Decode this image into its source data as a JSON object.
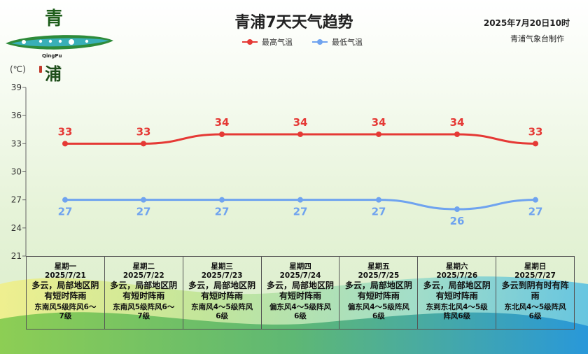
{
  "header": {
    "title": "青浦7天天气趋势",
    "date_stamp": "2025年7月20日10时",
    "maker": "青浦气象台制作"
  },
  "logo": {
    "char_top": "青",
    "char_bottom": "浦",
    "english": "QingPu"
  },
  "colors": {
    "high": "#e53935",
    "low": "#6fa3ef",
    "axis": "#666666"
  },
  "chart_data": {
    "type": "line",
    "title": "青浦7天天气趋势",
    "ylabel": "(℃)",
    "ylim": [
      21,
      39
    ],
    "yticks": [
      21,
      24,
      27,
      30,
      33,
      36,
      39
    ],
    "grid": false,
    "legend_position": "top-center",
    "categories": [
      "2025/7/21",
      "2025/7/22",
      "2025/7/23",
      "2025/7/24",
      "2025/7/25",
      "2025/7/26",
      "2025/7/27"
    ],
    "series": [
      {
        "name": "最高气温",
        "values": [
          33,
          33,
          34,
          34,
          34,
          34,
          33
        ]
      },
      {
        "name": "最低气温",
        "values": [
          27,
          27,
          27,
          27,
          27,
          26,
          27
        ]
      }
    ]
  },
  "forecast": [
    {
      "weekday": "星期一",
      "date": "2025/7/21",
      "weather": "多云，局部地区阴有短时阵雨",
      "wind": "东南风5级阵风6～7级"
    },
    {
      "weekday": "星期二",
      "date": "2025/7/22",
      "weather": "多云，局部地区阴有短时阵雨",
      "wind": "东南风5级阵风6～7级"
    },
    {
      "weekday": "星期三",
      "date": "2025/7/23",
      "weather": "多云，局部地区阴有短时阵雨",
      "wind": "东南风4～5级阵风6级"
    },
    {
      "weekday": "星期四",
      "date": "2025/7/24",
      "weather": "多云，局部地区阴有短时阵雨",
      "wind": "偏东风4～5级阵风6级"
    },
    {
      "weekday": "星期五",
      "date": "2025/7/25",
      "weather": "多云，局部地区阴有短时阵雨",
      "wind": "偏东风4～5级阵风6级"
    },
    {
      "weekday": "星期六",
      "date": "2025/7/26",
      "weather": "多云，局部地区阴有短时阵雨",
      "wind": "东到东北风4～5级阵风6级"
    },
    {
      "weekday": "星期日",
      "date": "2025/7/27",
      "weather": "多云到阴有时有阵雨",
      "wind": "东北风4～5级阵风6级"
    }
  ]
}
